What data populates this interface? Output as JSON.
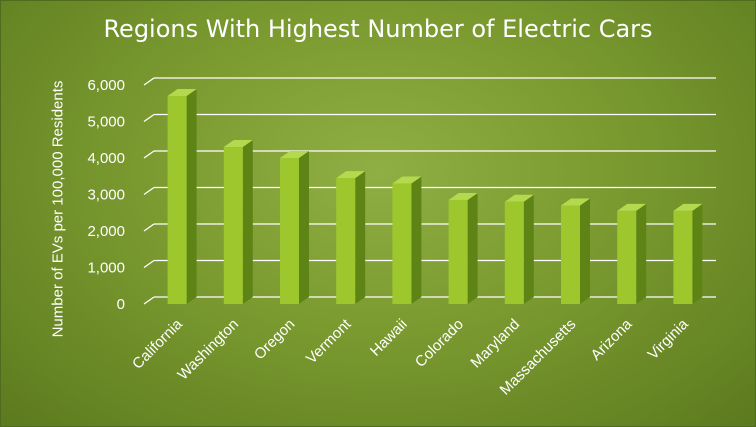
{
  "chart_data": {
    "type": "bar",
    "title": "Regions With Highest Number of Electric Cars",
    "ylabel": "Number of EVs per 100,000 Residents",
    "xlabel": "",
    "categories": [
      "California",
      "Washington",
      "Oregon",
      "Vermont",
      "Hawaii",
      "Colorado",
      "Maryland",
      "Massachusetts",
      "Arizona",
      "Virginia"
    ],
    "values": [
      5700,
      4300,
      4000,
      3450,
      3300,
      2850,
      2800,
      2700,
      2550,
      2550
    ],
    "ylim": [
      0,
      6000
    ],
    "yticks": [
      "0",
      "1,000",
      "2,000",
      "3,000",
      "4,000",
      "5,000",
      "6,000"
    ],
    "grid": true,
    "colors": {
      "bar_front": "#9dc72d",
      "bar_side": "#5e8416",
      "bar_top": "#b5d94e",
      "grid": "#ffffff"
    }
  }
}
